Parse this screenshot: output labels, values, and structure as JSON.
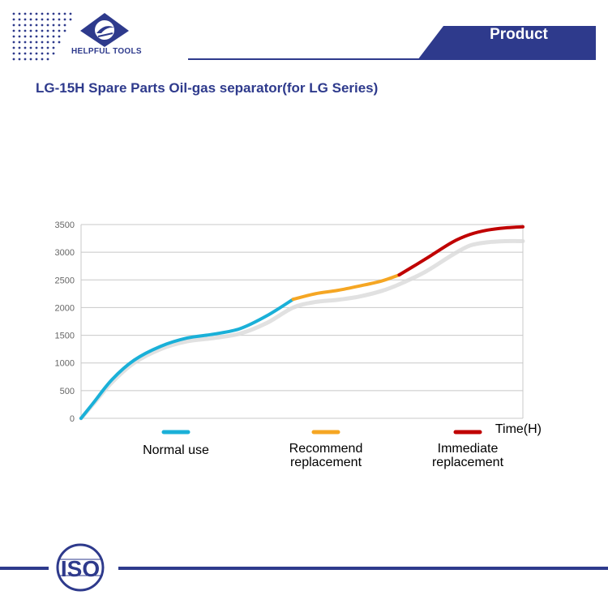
{
  "header": {
    "brand": "HELPFUL TOOLS",
    "tab_label": "Product",
    "accent_color": "#2e3a8c"
  },
  "page": {
    "title": "LG-15H Spare Parts Oil-gas separator(for LG Series)"
  },
  "chart_data": {
    "type": "line",
    "title": "",
    "xlabel": "Time(H)",
    "ylabel": "",
    "ylim": [
      0,
      3500
    ],
    "yticks": [
      0,
      500,
      1000,
      1500,
      2000,
      2500,
      3000,
      3500
    ],
    "x_range": [
      0,
      100
    ],
    "grid": true,
    "legend_position": "bottom",
    "series": [
      {
        "name": "Normal use",
        "color": "#1ab0d8",
        "x": [
          0,
          3,
          7,
          12,
          18,
          24,
          30,
          36,
          42,
          48
        ],
        "values": [
          0,
          300,
          700,
          1050,
          1300,
          1450,
          1520,
          1620,
          1850,
          2150
        ]
      },
      {
        "name": "Recommend replacement",
        "color": "#f5a623",
        "x": [
          48,
          53,
          58,
          63,
          68,
          72
        ],
        "values": [
          2150,
          2250,
          2310,
          2390,
          2480,
          2590
        ]
      },
      {
        "name": "Immediate replacement",
        "color": "#c00000",
        "x": [
          72,
          78,
          84,
          88,
          92,
          96,
          100
        ],
        "values": [
          2590,
          2880,
          3180,
          3320,
          3400,
          3440,
          3460
        ]
      }
    ],
    "shadow_series": {
      "color": "#d9d9d9",
      "x": [
        0,
        3,
        7,
        12,
        18,
        24,
        30,
        36,
        42,
        48,
        53,
        58,
        63,
        68,
        72,
        78,
        84,
        88,
        92,
        96,
        100
      ],
      "values": [
        0,
        280,
        650,
        1000,
        1250,
        1390,
        1450,
        1530,
        1720,
        2000,
        2100,
        2140,
        2200,
        2300,
        2420,
        2650,
        2950,
        3120,
        3180,
        3200,
        3200
      ]
    }
  },
  "footer": {
    "badge_text": "ISO"
  }
}
